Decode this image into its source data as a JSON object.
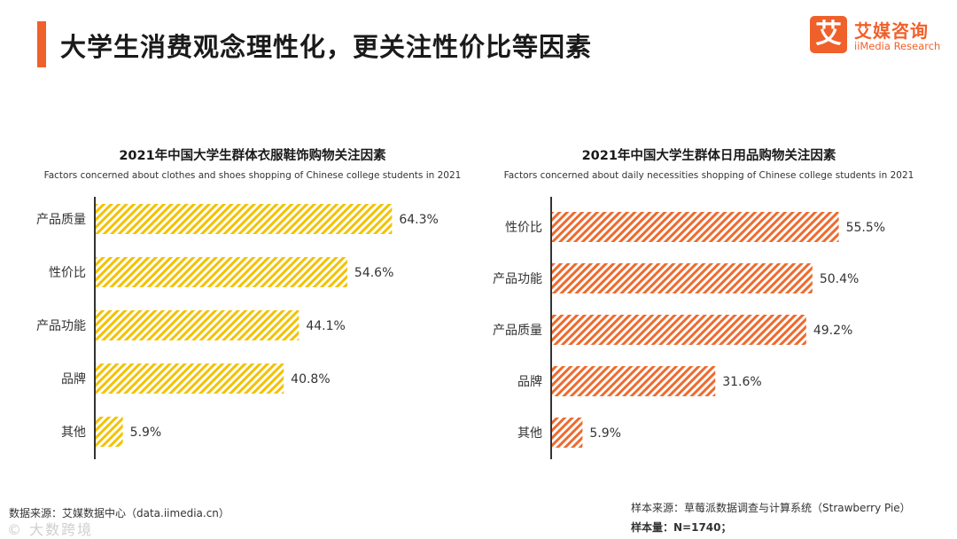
{
  "header": {
    "title": "大学生消费观念理性化，更关注性价比等因素",
    "accent_color": "#f0602a"
  },
  "logo": {
    "glyph": "艾",
    "name_cn": "艾媒咨询",
    "name_en": "iiMedia Research"
  },
  "chart_data": [
    {
      "type": "bar",
      "orientation": "horizontal",
      "title": "2021年中国大学生群体衣服鞋饰购物关注因素",
      "subtitle": "Factors concerned about clothes and shoes shopping of Chinese college students in 2021",
      "categories": [
        "产品质量",
        "性价比",
        "产品功能",
        "品牌",
        "其他"
      ],
      "values": [
        64.3,
        54.6,
        44.1,
        40.8,
        5.9
      ],
      "value_labels": [
        "64.3%",
        "54.6%",
        "44.1%",
        "40.8%",
        "5.9%"
      ],
      "unit": "%",
      "xlim": [
        0,
        100
      ],
      "color": "#f2c200",
      "pattern": "diagonal-hatch",
      "grid": false
    },
    {
      "type": "bar",
      "orientation": "horizontal",
      "title": "2021年中国大学生群体日用品购物关注因素",
      "subtitle": "Factors concerned about daily necessities shopping of Chinese college students in 2021",
      "categories": [
        "性价比",
        "产品功能",
        "产品质量",
        "品牌",
        "其他"
      ],
      "values": [
        55.5,
        50.4,
        49.2,
        31.6,
        5.9
      ],
      "value_labels": [
        "55.5%",
        "50.4%",
        "49.2%",
        "31.6%",
        "5.9%"
      ],
      "unit": "%",
      "xlim": [
        0,
        100
      ],
      "color": "#ee6a2e",
      "pattern": "diagonal-hatch",
      "grid": false
    }
  ],
  "footer": {
    "data_source": "数据来源：艾媒数据中心（data.iimedia.cn）",
    "sample_source": "样本来源：草莓派数据调查与计算系统（Strawberry Pie）",
    "sample_size": "样本量：N=1740；",
    "watermark": "© 大数跨境"
  }
}
